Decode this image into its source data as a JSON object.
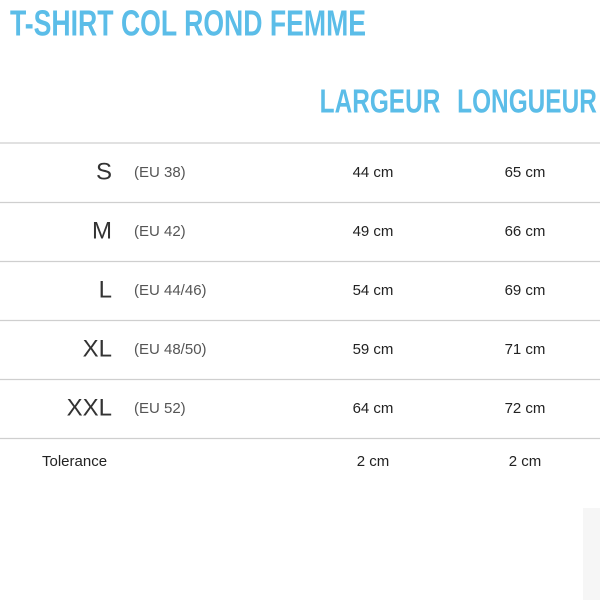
{
  "header": {
    "title": "T-SHIRT COL ROND FEMME"
  },
  "table": {
    "columns": [
      "LARGEUR",
      "LONGUEUR"
    ],
    "rows": [
      [
        "S",
        "(EU 38)",
        "44 cm",
        "65 cm"
      ],
      [
        "M",
        "(EU 42)",
        "49 cm",
        "66 cm"
      ],
      [
        "L",
        "(EU 44/46)",
        "54 cm",
        "69 cm"
      ],
      [
        "XL",
        "(EU 48/50)",
        "59 cm",
        "71 cm"
      ],
      [
        "XXL",
        "(EU 52)",
        "64 cm",
        "72 cm"
      ]
    ],
    "tolerance": [
      "Tolerance",
      "2 cm",
      "2 cm"
    ]
  }
}
